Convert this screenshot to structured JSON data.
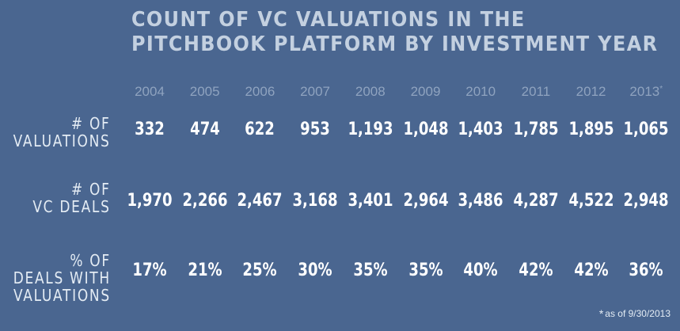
{
  "chart_data": {
    "type": "table",
    "title_lines": [
      "COUNT OF VC VALUATIONS IN THE",
      "PITCHBOOK PLATFORM BY INVESTMENT YEAR"
    ],
    "years": [
      "2004",
      "2005",
      "2006",
      "2007",
      "2008",
      "2009",
      "2010",
      "2011",
      "2012",
      "2013"
    ],
    "year_marks": [
      "",
      "",
      "",
      "",
      "",
      "",
      "",
      "",
      "",
      "*"
    ],
    "rows": [
      {
        "label_lines": [
          "# OF",
          "VALUATIONS"
        ],
        "values": [
          "332",
          "474",
          "622",
          "953",
          "1,193",
          "1,048",
          "1,403",
          "1,785",
          "1,895",
          "1,065"
        ]
      },
      {
        "label_lines": [
          "# OF",
          "VC DEALS"
        ],
        "values": [
          "1,970",
          "2,266",
          "2,467",
          "3,168",
          "3,401",
          "2,964",
          "3,486",
          "4,287",
          "4,522",
          "2,948"
        ]
      },
      {
        "label_lines": [
          "% OF",
          "DEALS WITH",
          "VALUATIONS"
        ],
        "values": [
          "17%",
          "21%",
          "25%",
          "30%",
          "35%",
          "35%",
          "40%",
          "42%",
          "42%",
          "36%"
        ]
      }
    ],
    "footnote": {
      "mark": "*",
      "text": "as of 9/30/2013"
    }
  }
}
